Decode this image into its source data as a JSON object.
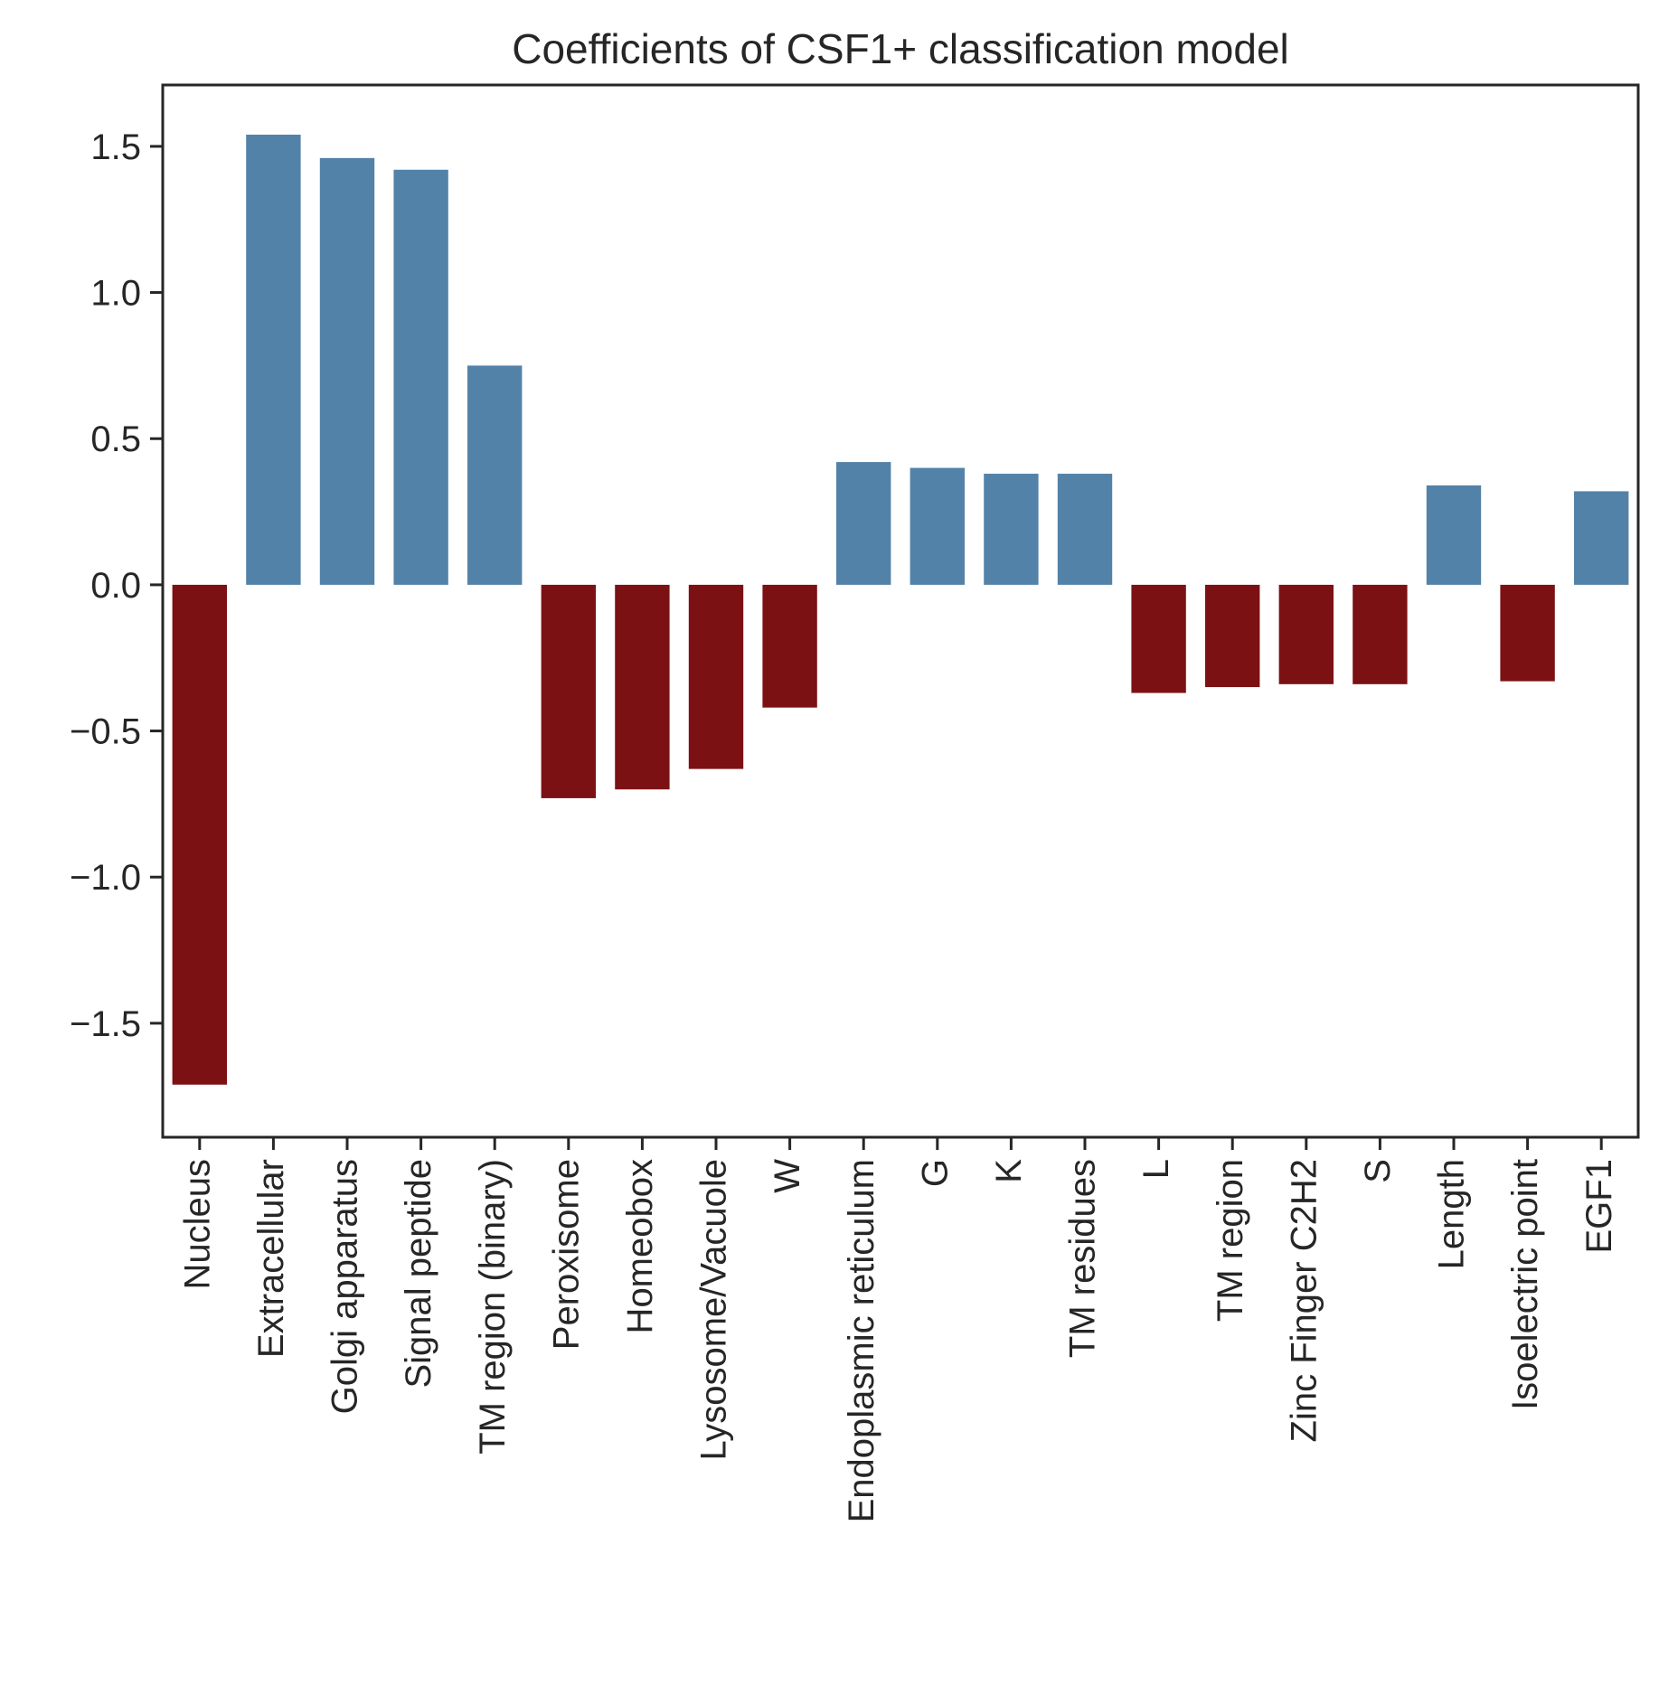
{
  "chart_data": {
    "type": "bar",
    "title": "Coefficients of CSF1+ classification model",
    "xlabel": "",
    "ylabel": "",
    "categories": [
      "Nucleus",
      "Extracellular",
      "Golgi apparatus",
      "Signal peptide",
      "TM region (binary)",
      "Peroxisome",
      "Homeobox",
      "Lysosome/Vacuole",
      "W",
      "Endoplasmic reticulum",
      "G",
      "K",
      "TM residues",
      "L",
      "TM region",
      "Zinc Finger C2H2",
      "S",
      "Length",
      "Isoelectric point",
      "EGF1"
    ],
    "values": [
      -1.71,
      1.54,
      1.46,
      1.42,
      0.75,
      -0.73,
      -0.7,
      -0.63,
      -0.42,
      0.42,
      0.4,
      0.38,
      0.38,
      -0.37,
      -0.35,
      -0.34,
      -0.34,
      0.34,
      -0.33,
      0.32
    ],
    "ylim": [
      -1.89,
      1.71
    ],
    "yticks": [
      -1.5,
      -1.0,
      -0.5,
      0.0,
      0.5,
      1.0,
      1.5
    ],
    "ytick_labels": [
      "−1.5",
      "−1.0",
      "−0.5",
      "0.0",
      "0.5",
      "1.0",
      "1.5"
    ],
    "grid": false,
    "legend": "none",
    "colors": {
      "positive": "#5382a8",
      "negative": "#7b1113"
    }
  }
}
